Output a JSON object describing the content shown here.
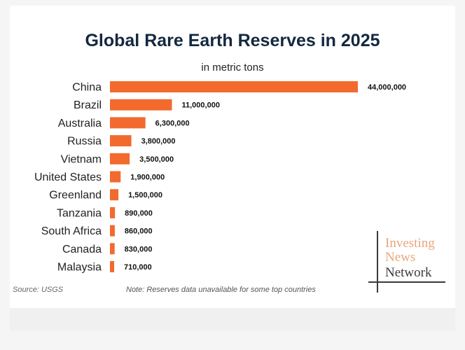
{
  "title": "Global Rare Earth Reserves in 2025",
  "subtitle": "in metric tons",
  "source": "Source: USGS",
  "note": "Note: Reserves data unavailable for some top countries",
  "logo": {
    "line1": "Investing",
    "line2": "News",
    "line3": "Network"
  },
  "colors": {
    "bar": "#f26a2e",
    "title": "#14283f",
    "logo_accent": "#e8a77e",
    "logo_dark": "#3a3a3a"
  },
  "chart_data": {
    "type": "bar",
    "orientation": "horizontal",
    "title": "Global Rare Earth Reserves in 2025",
    "subtitle": "in metric tons",
    "categories": [
      "China",
      "Brazil",
      "Australia",
      "Russia",
      "Vietnam",
      "United States",
      "Greenland",
      "Tanzania",
      "South Africa",
      "Canada",
      "Malaysia"
    ],
    "values": [
      44000000,
      11000000,
      6300000,
      3800000,
      3500000,
      1900000,
      1500000,
      890000,
      860000,
      830000,
      710000
    ],
    "value_labels": [
      "44,000,000",
      "11,000,000",
      "6,300,000",
      "3,800,000",
      "3,500,000",
      "1,900,000",
      "1,500,000",
      "890,000",
      "860,000",
      "830,000",
      "710,000"
    ],
    "xlim": [
      0,
      44000000
    ],
    "grid": false,
    "legend": "none"
  }
}
